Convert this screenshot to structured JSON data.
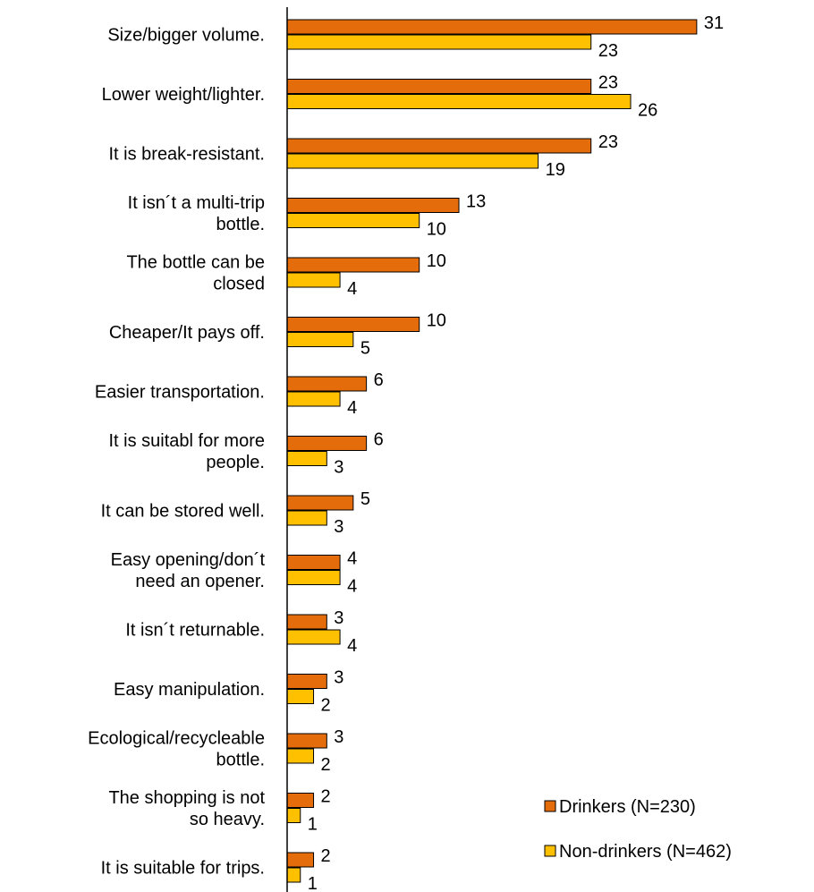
{
  "chart_data": {
    "type": "bar",
    "orientation": "horizontal",
    "categories": [
      [
        "Size/bigger volume."
      ],
      [
        "Lower weight/lighter."
      ],
      [
        "It is break-resistant."
      ],
      [
        "It isn´t a multi-trip",
        "bottle."
      ],
      [
        "The bottle can be",
        "closed"
      ],
      [
        "Cheaper/It pays off."
      ],
      [
        "Easier transportation."
      ],
      [
        "It is suitabl for more",
        "people."
      ],
      [
        "It can be stored well."
      ],
      [
        "Easy opening/don´t",
        "need an opener."
      ],
      [
        "It isn´t returnable."
      ],
      [
        "Easy manipulation."
      ],
      [
        "Ecological/recycleable",
        "bottle."
      ],
      [
        "The shopping is not",
        "so heavy."
      ],
      [
        "It is suitable for trips."
      ]
    ],
    "series": [
      {
        "name": "Drinkers (N=230)",
        "color": "#E46C0A",
        "values": [
          31,
          23,
          23,
          13,
          10,
          10,
          6,
          6,
          5,
          4,
          3,
          3,
          3,
          2,
          2
        ]
      },
      {
        "name": "Non-drinkers (N=462)",
        "color": "#FFC000",
        "values": [
          23,
          26,
          19,
          10,
          4,
          5,
          4,
          3,
          3,
          4,
          4,
          2,
          2,
          1,
          1
        ]
      }
    ],
    "xlim": [
      0,
      40
    ],
    "grid": false,
    "legend_position": "bottom-right"
  }
}
